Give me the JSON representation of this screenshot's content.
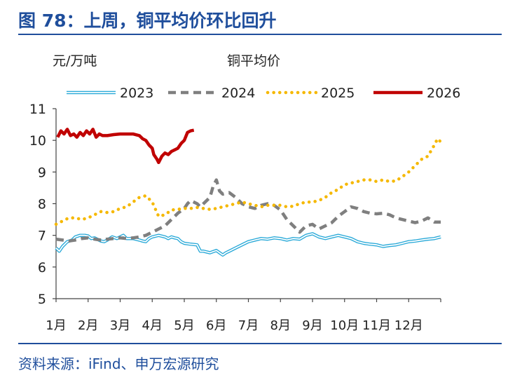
{
  "figure": {
    "title": "图 78：上周，铜平均价环比回升",
    "source": "资料来源：iFind、申万宏源研究"
  },
  "colors": {
    "frame": "#1f4e9c",
    "2023": "#29a9d8",
    "2024": "#7f7f7f",
    "2025": "#f5b800",
    "2026": "#c00000"
  },
  "chart_data": {
    "type": "line",
    "title": "铜平均价",
    "unit_label": "元/万吨",
    "ylim": [
      5,
      11
    ],
    "yticks": [
      "5",
      "6",
      "7",
      "8",
      "9",
      "10",
      "11"
    ],
    "xlim": [
      0,
      12
    ],
    "xticks": [
      "1月",
      "2月",
      "3月",
      "4月",
      "5月",
      "6月",
      "7月",
      "8月",
      "9月",
      "10月",
      "11月",
      "12月"
    ],
    "grid": false,
    "legend_position": "top",
    "series": [
      {
        "name": "2023",
        "style": "double-line",
        "points": [
          [
            0.0,
            6.6
          ],
          [
            0.1,
            6.5
          ],
          [
            0.2,
            6.65
          ],
          [
            0.35,
            6.8
          ],
          [
            0.5,
            6.85
          ],
          [
            0.6,
            6.95
          ],
          [
            0.75,
            7.0
          ],
          [
            0.9,
            7.0
          ],
          [
            1.0,
            6.98
          ],
          [
            1.1,
            6.9
          ],
          [
            1.2,
            6.92
          ],
          [
            1.4,
            6.82
          ],
          [
            1.5,
            6.8
          ],
          [
            1.6,
            6.85
          ],
          [
            1.75,
            6.95
          ],
          [
            1.9,
            6.9
          ],
          [
            2.0,
            6.95
          ],
          [
            2.1,
            7.0
          ],
          [
            2.2,
            6.9
          ],
          [
            2.4,
            6.9
          ],
          [
            2.6,
            6.85
          ],
          [
            2.7,
            6.82
          ],
          [
            2.8,
            6.8
          ],
          [
            2.9,
            6.9
          ],
          [
            3.0,
            6.95
          ],
          [
            3.2,
            7.0
          ],
          [
            3.4,
            6.95
          ],
          [
            3.5,
            6.9
          ],
          [
            3.6,
            6.95
          ],
          [
            3.7,
            6.92
          ],
          [
            3.8,
            6.9
          ],
          [
            3.9,
            6.8
          ],
          [
            4.0,
            6.75
          ],
          [
            4.2,
            6.72
          ],
          [
            4.4,
            6.7
          ],
          [
            4.5,
            6.5
          ],
          [
            4.6,
            6.5
          ],
          [
            4.8,
            6.45
          ],
          [
            5.0,
            6.52
          ],
          [
            5.1,
            6.45
          ],
          [
            5.2,
            6.38
          ],
          [
            5.3,
            6.45
          ],
          [
            5.4,
            6.5
          ],
          [
            5.6,
            6.6
          ],
          [
            5.8,
            6.7
          ],
          [
            6.0,
            6.8
          ],
          [
            6.2,
            6.85
          ],
          [
            6.4,
            6.9
          ],
          [
            6.6,
            6.88
          ],
          [
            6.8,
            6.92
          ],
          [
            7.0,
            6.9
          ],
          [
            7.2,
            6.85
          ],
          [
            7.4,
            6.9
          ],
          [
            7.6,
            6.88
          ],
          [
            7.8,
            7.0
          ],
          [
            8.0,
            7.05
          ],
          [
            8.2,
            6.95
          ],
          [
            8.4,
            6.9
          ],
          [
            8.6,
            6.95
          ],
          [
            8.8,
            7.0
          ],
          [
            9.0,
            6.95
          ],
          [
            9.2,
            6.9
          ],
          [
            9.4,
            6.8
          ],
          [
            9.6,
            6.75
          ],
          [
            9.8,
            6.72
          ],
          [
            10.0,
            6.7
          ],
          [
            10.2,
            6.65
          ],
          [
            10.4,
            6.68
          ],
          [
            10.6,
            6.7
          ],
          [
            10.8,
            6.75
          ],
          [
            11.0,
            6.8
          ],
          [
            11.2,
            6.82
          ],
          [
            11.4,
            6.85
          ],
          [
            11.6,
            6.88
          ],
          [
            11.8,
            6.9
          ],
          [
            12.0,
            6.95
          ]
        ]
      },
      {
        "name": "2024",
        "style": "dashed",
        "points": [
          [
            0.0,
            6.88
          ],
          [
            0.2,
            6.85
          ],
          [
            0.4,
            6.82
          ],
          [
            0.6,
            6.85
          ],
          [
            0.8,
            6.9
          ],
          [
            1.0,
            6.92
          ],
          [
            1.2,
            6.88
          ],
          [
            1.4,
            6.85
          ],
          [
            1.6,
            6.88
          ],
          [
            1.8,
            6.9
          ],
          [
            2.0,
            6.92
          ],
          [
            2.2,
            6.9
          ],
          [
            2.4,
            6.92
          ],
          [
            2.6,
            6.95
          ],
          [
            2.8,
            7.0
          ],
          [
            3.0,
            7.1
          ],
          [
            3.2,
            7.2
          ],
          [
            3.4,
            7.3
          ],
          [
            3.6,
            7.5
          ],
          [
            3.8,
            7.7
          ],
          [
            4.0,
            7.85
          ],
          [
            4.1,
            8.0
          ],
          [
            4.2,
            8.1
          ],
          [
            4.4,
            8.0
          ],
          [
            4.5,
            7.9
          ],
          [
            4.6,
            8.0
          ],
          [
            4.8,
            8.2
          ],
          [
            4.9,
            8.55
          ],
          [
            5.0,
            8.75
          ],
          [
            5.1,
            8.4
          ],
          [
            5.2,
            8.3
          ],
          [
            5.4,
            8.35
          ],
          [
            5.6,
            8.2
          ],
          [
            5.8,
            8.0
          ],
          [
            6.0,
            7.9
          ],
          [
            6.2,
            7.85
          ],
          [
            6.4,
            7.95
          ],
          [
            6.6,
            8.0
          ],
          [
            6.8,
            7.95
          ],
          [
            7.0,
            7.8
          ],
          [
            7.2,
            7.5
          ],
          [
            7.4,
            7.3
          ],
          [
            7.5,
            7.2
          ],
          [
            7.6,
            7.1
          ],
          [
            7.8,
            7.3
          ],
          [
            8.0,
            7.35
          ],
          [
            8.2,
            7.2
          ],
          [
            8.4,
            7.3
          ],
          [
            8.6,
            7.4
          ],
          [
            8.8,
            7.6
          ],
          [
            9.0,
            7.75
          ],
          [
            9.2,
            7.9
          ],
          [
            9.4,
            7.85
          ],
          [
            9.6,
            7.75
          ],
          [
            9.8,
            7.7
          ],
          [
            10.0,
            7.68
          ],
          [
            10.2,
            7.7
          ],
          [
            10.4,
            7.65
          ],
          [
            10.6,
            7.55
          ],
          [
            10.8,
            7.5
          ],
          [
            11.0,
            7.45
          ],
          [
            11.2,
            7.4
          ],
          [
            11.4,
            7.45
          ],
          [
            11.6,
            7.55
          ],
          [
            11.8,
            7.42
          ],
          [
            12.0,
            7.42
          ]
        ]
      },
      {
        "name": "2025",
        "style": "dotted",
        "points": [
          [
            0.0,
            7.35
          ],
          [
            0.2,
            7.45
          ],
          [
            0.4,
            7.55
          ],
          [
            0.6,
            7.55
          ],
          [
            0.8,
            7.5
          ],
          [
            1.0,
            7.55
          ],
          [
            1.2,
            7.65
          ],
          [
            1.4,
            7.75
          ],
          [
            1.6,
            7.72
          ],
          [
            1.8,
            7.75
          ],
          [
            2.0,
            7.85
          ],
          [
            2.2,
            7.9
          ],
          [
            2.4,
            8.05
          ],
          [
            2.6,
            8.2
          ],
          [
            2.8,
            8.25
          ],
          [
            3.0,
            8.05
          ],
          [
            3.2,
            7.6
          ],
          [
            3.4,
            7.65
          ],
          [
            3.6,
            7.8
          ],
          [
            3.8,
            7.82
          ],
          [
            4.0,
            7.85
          ],
          [
            4.2,
            7.85
          ],
          [
            4.4,
            7.88
          ],
          [
            4.6,
            7.85
          ],
          [
            4.8,
            7.82
          ],
          [
            5.0,
            7.85
          ],
          [
            5.2,
            7.9
          ],
          [
            5.4,
            7.95
          ],
          [
            5.6,
            8.0
          ],
          [
            5.8,
            8.05
          ],
          [
            6.0,
            8.0
          ],
          [
            6.2,
            7.95
          ],
          [
            6.4,
            7.9
          ],
          [
            6.6,
            7.95
          ],
          [
            6.8,
            7.95
          ],
          [
            7.0,
            7.95
          ],
          [
            7.2,
            7.9
          ],
          [
            7.4,
            7.92
          ],
          [
            7.6,
            8.0
          ],
          [
            7.8,
            8.05
          ],
          [
            8.0,
            8.05
          ],
          [
            8.2,
            8.1
          ],
          [
            8.4,
            8.2
          ],
          [
            8.6,
            8.35
          ],
          [
            8.8,
            8.45
          ],
          [
            9.0,
            8.6
          ],
          [
            9.2,
            8.65
          ],
          [
            9.4,
            8.7
          ],
          [
            9.6,
            8.75
          ],
          [
            9.8,
            8.75
          ],
          [
            10.0,
            8.7
          ],
          [
            10.2,
            8.75
          ],
          [
            10.4,
            8.7
          ],
          [
            10.6,
            8.72
          ],
          [
            10.8,
            8.85
          ],
          [
            11.0,
            9.0
          ],
          [
            11.2,
            9.2
          ],
          [
            11.4,
            9.4
          ],
          [
            11.6,
            9.5
          ],
          [
            11.8,
            9.85
          ],
          [
            11.9,
            10.05
          ],
          [
            12.0,
            9.95
          ]
        ]
      },
      {
        "name": "2026",
        "style": "solid",
        "points": [
          [
            0.05,
            10.1
          ],
          [
            0.15,
            10.3
          ],
          [
            0.25,
            10.2
          ],
          [
            0.35,
            10.35
          ],
          [
            0.45,
            10.15
          ],
          [
            0.55,
            10.2
          ],
          [
            0.65,
            10.1
          ],
          [
            0.75,
            10.25
          ],
          [
            0.85,
            10.15
          ],
          [
            0.95,
            10.3
          ],
          [
            1.05,
            10.2
          ],
          [
            1.15,
            10.35
          ],
          [
            1.25,
            10.1
          ],
          [
            1.35,
            10.2
          ],
          [
            1.45,
            10.15
          ],
          [
            1.6,
            10.15
          ],
          [
            1.8,
            10.18
          ],
          [
            2.0,
            10.2
          ],
          [
            2.2,
            10.2
          ],
          [
            2.4,
            10.2
          ],
          [
            2.6,
            10.15
          ],
          [
            2.7,
            10.05
          ],
          [
            2.8,
            10.0
          ],
          [
            2.9,
            9.85
          ],
          [
            3.0,
            9.75
          ],
          [
            3.05,
            9.55
          ],
          [
            3.15,
            9.4
          ],
          [
            3.2,
            9.3
          ],
          [
            3.3,
            9.5
          ],
          [
            3.4,
            9.6
          ],
          [
            3.5,
            9.55
          ],
          [
            3.6,
            9.65
          ],
          [
            3.7,
            9.7
          ],
          [
            3.8,
            9.75
          ],
          [
            3.9,
            9.9
          ],
          [
            4.0,
            10.0
          ],
          [
            4.1,
            10.25
          ],
          [
            4.2,
            10.3
          ],
          [
            4.3,
            10.32
          ]
        ]
      }
    ]
  }
}
